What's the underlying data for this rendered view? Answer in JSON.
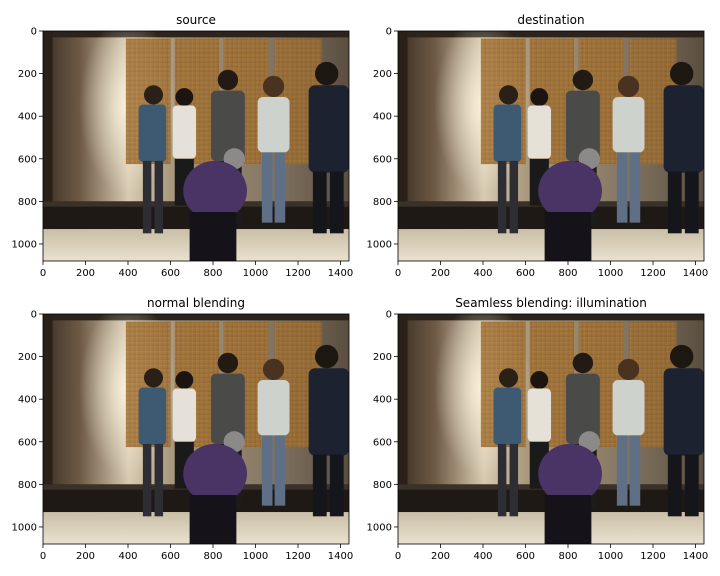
{
  "chart_data": [
    {
      "type": "image",
      "title": "source",
      "xticks": [
        0,
        200,
        400,
        600,
        800,
        1000,
        1200,
        1400
      ],
      "yticks": [
        0,
        200,
        400,
        600,
        800,
        1000
      ],
      "xlim": [
        0,
        1440
      ],
      "ylim": [
        1080,
        0
      ],
      "grid": false
    },
    {
      "type": "image",
      "title": "destination",
      "xticks": [
        0,
        200,
        400,
        600,
        800,
        1000,
        1200,
        1400
      ],
      "yticks": [
        0,
        200,
        400,
        600,
        800,
        1000
      ],
      "xlim": [
        0,
        1440
      ],
      "ylim": [
        1080,
        0
      ],
      "grid": false
    },
    {
      "type": "image",
      "title": "normal blending",
      "xticks": [
        0,
        200,
        400,
        600,
        800,
        1000,
        1200,
        1400
      ],
      "yticks": [
        0,
        200,
        400,
        600,
        800,
        1000
      ],
      "xlim": [
        0,
        1440
      ],
      "ylim": [
        1080,
        0
      ],
      "grid": false
    },
    {
      "type": "image",
      "title": "Seamless blending: illumination",
      "xticks": [
        0,
        200,
        400,
        600,
        800,
        1000,
        1200,
        1400
      ],
      "yticks": [
        0,
        200,
        400,
        600,
        800,
        1000
      ],
      "xlim": [
        0,
        1440
      ],
      "ylim": [
        1080,
        0
      ],
      "grid": false
    }
  ]
}
